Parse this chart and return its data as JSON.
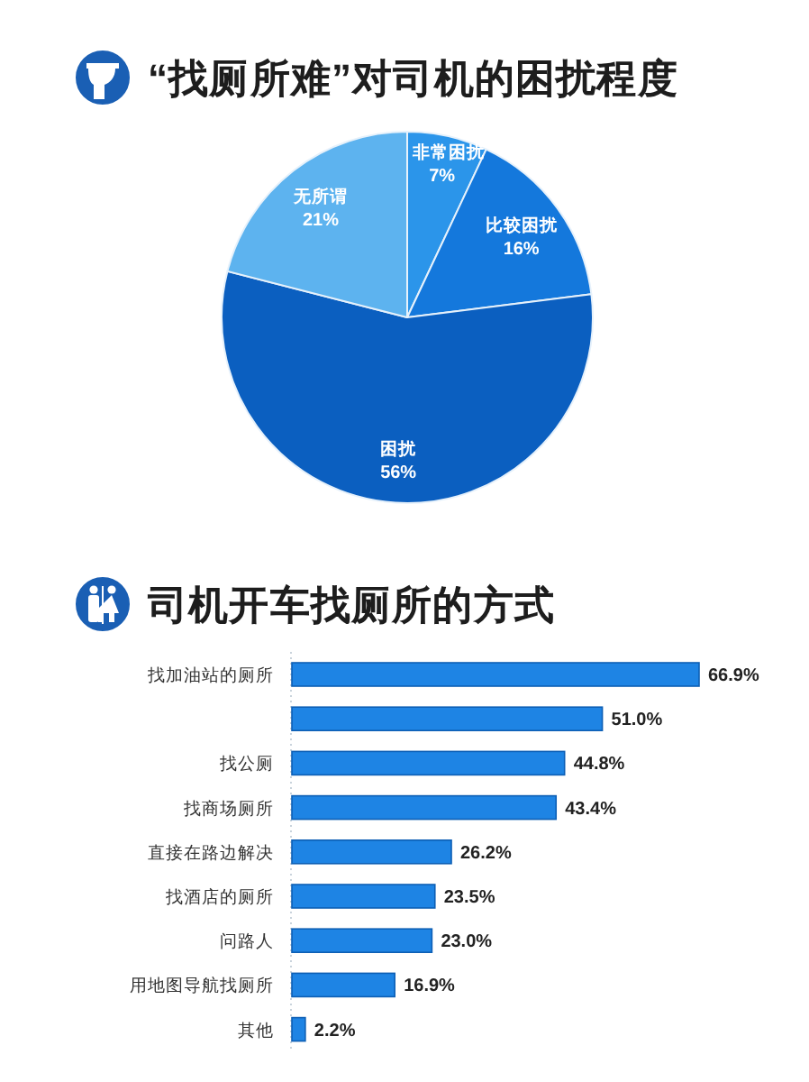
{
  "chart_data": [
    {
      "type": "pie",
      "title": "“找厕所难”对司机的困扰程度",
      "categories": [
        "非常困扰",
        "比较困扰",
        "困扰",
        "无所谓"
      ],
      "values": [
        7,
        16,
        56,
        21
      ],
      "colors": [
        "#2b95ea",
        "#1478dc",
        "#0b5fc0",
        "#5db3ef"
      ],
      "value_labels": [
        "7%",
        "16%",
        "56%",
        "21%"
      ]
    },
    {
      "type": "bar",
      "orientation": "horizontal",
      "title": "司机开车找厕所的方式",
      "categories": [
        "找加油站的厕所",
        null,
        "找公厕",
        "找商场厕所",
        "直接在路边解决",
        "找酒店的厕所",
        "问路人",
        "用地图导航找厕所",
        "其他"
      ],
      "values": [
        66.9,
        51.0,
        44.8,
        43.4,
        26.2,
        23.5,
        23.0,
        16.9,
        2.2
      ],
      "color": "#1e84e4",
      "value_labels": [
        "66.9%",
        "51.0%",
        "44.8%",
        "43.4%",
        "26.2%",
        "23.5%",
        "23.0%",
        "16.9%",
        "2.2%"
      ]
    }
  ]
}
